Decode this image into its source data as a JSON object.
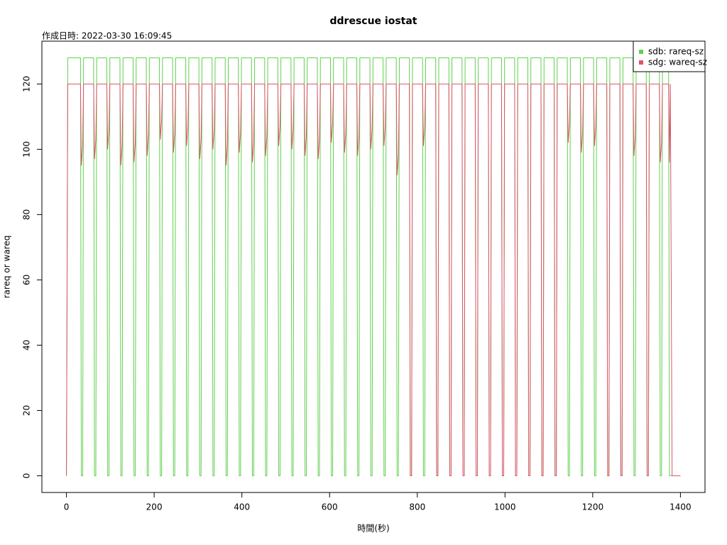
{
  "chart_data": {
    "type": "line",
    "title": "ddrescue iostat",
    "subtitle": "作成日時: 2022-03-30 16:09:45",
    "x_label": "時間(秒)",
    "y_label": "rareq or wareq",
    "xlim": [
      -56,
      1456
    ],
    "ylim": [
      -5.12,
      133.12
    ],
    "xticks": [
      0,
      200,
      400,
      600,
      800,
      1000,
      1200,
      1400
    ],
    "yticks": [
      0,
      20,
      40,
      60,
      80,
      100,
      120
    ],
    "legend": "topright",
    "x": [
      0,
      3,
      32,
      34,
      37,
      39,
      62,
      64,
      67,
      69,
      92,
      94,
      97,
      99,
      122,
      124,
      127,
      129,
      152,
      154,
      157,
      159,
      182,
      184,
      187,
      189,
      212,
      214,
      217,
      219,
      242,
      244,
      247,
      249,
      272,
      274,
      277,
      279,
      302,
      304,
      307,
      309,
      332,
      334,
      337,
      339,
      362,
      364,
      367,
      369,
      392,
      394,
      397,
      399,
      422,
      424,
      427,
      429,
      452,
      454,
      457,
      459,
      482,
      484,
      487,
      489,
      512,
      514,
      517,
      519,
      542,
      544,
      547,
      549,
      572,
      574,
      577,
      579,
      602,
      604,
      607,
      609,
      632,
      634,
      637,
      639,
      662,
      664,
      667,
      669,
      692,
      694,
      697,
      699,
      722,
      724,
      727,
      729,
      752,
      754,
      757,
      759,
      782,
      784,
      787,
      789,
      812,
      814,
      817,
      819,
      842,
      844,
      847,
      849,
      872,
      874,
      877,
      879,
      902,
      904,
      907,
      909,
      932,
      934,
      937,
      939,
      962,
      964,
      967,
      969,
      992,
      994,
      997,
      999,
      1022,
      1024,
      1027,
      1029,
      1052,
      1054,
      1057,
      1059,
      1082,
      1084,
      1087,
      1089,
      1112,
      1114,
      1117,
      1119,
      1142,
      1144,
      1147,
      1149,
      1172,
      1174,
      1177,
      1179,
      1202,
      1204,
      1207,
      1209,
      1232,
      1234,
      1237,
      1239,
      1262,
      1264,
      1267,
      1269,
      1292,
      1294,
      1297,
      1299,
      1322,
      1324,
      1327,
      1329,
      1352,
      1354,
      1357,
      1359,
      1373,
      1375,
      1377,
      1381,
      1400
    ],
    "series": [
      {
        "name": "sdb: rareq-sz",
        "color": "#61D04F",
        "values": [
          0,
          128,
          128,
          0,
          0,
          128,
          128,
          0,
          0,
          128,
          128,
          0,
          0,
          128,
          128,
          0,
          0,
          128,
          128,
          0,
          0,
          128,
          128,
          0,
          0,
          128,
          128,
          0,
          0,
          128,
          128,
          0,
          0,
          128,
          128,
          0,
          0,
          128,
          128,
          0,
          0,
          128,
          128,
          0,
          0,
          128,
          128,
          0,
          0,
          128,
          128,
          0,
          0,
          128,
          128,
          0,
          0,
          128,
          128,
          0,
          0,
          128,
          128,
          0,
          0,
          128,
          128,
          0,
          0,
          128,
          128,
          0,
          0,
          128,
          128,
          0,
          0,
          128,
          128,
          0,
          0,
          128,
          128,
          0,
          0,
          128,
          128,
          0,
          0,
          128,
          128,
          0,
          0,
          128,
          128,
          0,
          0,
          128,
          128,
          0,
          0,
          128,
          128,
          0,
          0,
          128,
          128,
          0,
          0,
          128,
          128,
          0,
          0,
          128,
          128,
          0,
          0,
          128,
          128,
          0,
          0,
          128,
          128,
          0,
          0,
          128,
          128,
          0,
          0,
          128,
          128,
          0,
          0,
          128,
          128,
          0,
          0,
          128,
          128,
          0,
          0,
          128,
          128,
          0,
          0,
          128,
          128,
          0,
          0,
          128,
          128,
          0,
          0,
          128,
          128,
          0,
          0,
          128,
          128,
          0,
          0,
          128,
          128,
          0,
          0,
          128,
          128,
          0,
          0,
          128,
          128,
          0,
          0,
          128,
          128,
          0,
          0,
          128,
          128,
          0,
          0,
          128,
          128,
          0,
          0,
          0,
          0
        ]
      },
      {
        "name": "sdg: wareq-sz",
        "color": "#DF536B",
        "values": [
          0,
          120,
          120,
          95,
          101,
          120,
          120,
          97,
          103,
          120,
          120,
          100,
          106,
          120,
          120,
          95,
          101,
          120,
          120,
          96,
          102,
          120,
          120,
          98,
          104,
          120,
          120,
          103,
          109,
          120,
          120,
          99,
          105,
          120,
          120,
          101,
          107,
          120,
          120,
          97,
          103,
          120,
          120,
          100,
          106,
          120,
          120,
          95,
          101,
          120,
          120,
          99,
          105,
          120,
          120,
          96,
          102,
          120,
          120,
          98,
          104,
          120,
          120,
          101,
          107,
          120,
          120,
          100,
          106,
          120,
          120,
          98,
          104,
          120,
          120,
          97,
          103,
          120,
          120,
          102,
          108,
          120,
          120,
          99,
          105,
          120,
          120,
          98,
          104,
          120,
          120,
          100,
          106,
          120,
          120,
          101,
          107,
          120,
          120,
          92,
          98,
          120,
          120,
          0,
          0,
          120,
          120,
          101,
          107,
          120,
          120,
          0,
          0,
          120,
          120,
          0,
          0,
          120,
          120,
          0,
          0,
          120,
          120,
          0,
          0,
          120,
          120,
          0,
          0,
          120,
          120,
          0,
          0,
          120,
          120,
          0,
          0,
          120,
          120,
          0,
          0,
          120,
          120,
          0,
          0,
          120,
          120,
          0,
          0,
          120,
          120,
          102,
          108,
          120,
          120,
          99,
          105,
          120,
          120,
          101,
          107,
          120,
          120,
          0,
          0,
          120,
          120,
          0,
          0,
          120,
          120,
          98,
          104,
          120,
          120,
          0,
          0,
          120,
          120,
          96,
          102,
          120,
          120,
          96,
          120,
          0,
          0
        ]
      }
    ]
  }
}
